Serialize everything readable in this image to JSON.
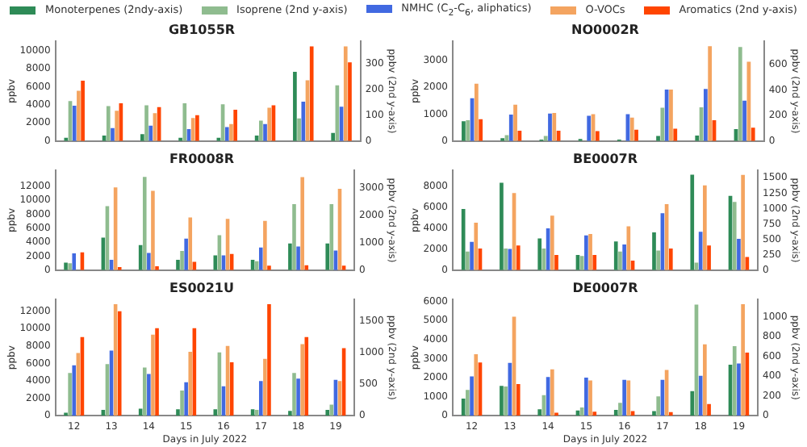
{
  "chart_data": [
    {
      "type": "bar",
      "title": "GB1055R",
      "ylabel": "ppbv",
      "y2label": "ppbv (2nd y-axis)",
      "legend": "top",
      "tick_labels": "y",
      "categories": [
        "12",
        "13",
        "14",
        "15",
        "16",
        "17",
        "18",
        "19"
      ],
      "ylim": [
        0,
        11000
      ],
      "yticks": [
        0,
        2000,
        4000,
        6000,
        8000,
        10000
      ],
      "y2lim": [
        0,
        385
      ],
      "y2ticks": [
        0,
        100,
        200,
        300
      ],
      "series": [
        {
          "name": "Monoterpenes (2ndy-axis)",
          "color": "#2e8b57",
          "axis": "y2",
          "values": [
            13,
            21,
            27,
            13,
            13,
            21,
            267,
            31
          ]
        },
        {
          "name": "Isoprene (2nd y-axis)",
          "color": "#8fbc8f",
          "axis": "y2",
          "values": [
            154,
            135,
            138,
            146,
            142,
            79,
            87,
            215
          ]
        },
        {
          "name": "NMHC (C$_{2}$-C$_{6}$, aliphatics)",
          "color": "#4169e1",
          "values": [
            3900,
            1430,
            1700,
            1320,
            1540,
            1870,
            4340,
            3790
          ]
        },
        {
          "name": "O-VOCs",
          "color": "#f4a460",
          "values": [
            5550,
            3350,
            3080,
            2530,
            1870,
            3680,
            6700,
            10440
          ]
        },
        {
          "name": "Aromatics (2nd y-axis)",
          "color": "#ff4500",
          "axis": "y2",
          "values": [
            233,
            146,
            131,
            100,
            121,
            138,
            365,
            304
          ]
        }
      ]
    },
    {
      "type": "bar",
      "title": "NO0002R",
      "ylabel": "ppbv",
      "y2label": "ppbv (2nd y-axis)",
      "tick_labels": "y",
      "categories": [
        "12",
        "13",
        "14",
        "15",
        "16",
        "17",
        "18",
        "19"
      ],
      "ylim": [
        0,
        3700
      ],
      "yticks": [
        0,
        1000,
        2000,
        3000
      ],
      "y2lim": [
        0,
        780
      ],
      "y2ticks": [
        0,
        200,
        400,
        600
      ],
      "series": [
        {
          "color": "#2e8b57",
          "axis": "y2",
          "values": [
            155,
            23,
            12,
            16,
            12,
            39,
            43,
            93
          ]
        },
        {
          "color": "#8fbc8f",
          "axis": "y2",
          "values": [
            163,
            46,
            39,
            null,
            null,
            260,
            264,
            736
          ]
        },
        {
          "color": "#4169e1",
          "values": [
            1590,
            980,
            1020,
            940,
            1000,
            1910,
            1930,
            1500
          ]
        },
        {
          "color": "#f4a460",
          "values": [
            2130,
            1350,
            1040,
            1000,
            870,
            1910,
            3520,
            2940
          ]
        },
        {
          "color": "#ff4500",
          "axis": "y2",
          "values": [
            171,
            81,
            81,
            78,
            89,
            97,
            163,
            105
          ]
        }
      ]
    },
    {
      "type": "bar",
      "title": "FR0008R",
      "ylabel": "ppbv",
      "y2label": "ppbv (2nd y-axis)",
      "tick_labels": "y",
      "categories": [
        "12",
        "13",
        "14",
        "15",
        "16",
        "17",
        "18",
        "19"
      ],
      "ylim": [
        0,
        14300
      ],
      "yticks": [
        0,
        2000,
        4000,
        6000,
        8000,
        10000,
        12000
      ],
      "y2lim": [
        0,
        3630
      ],
      "y2ticks": [
        0,
        1000,
        2000,
        3000
      ],
      "series": [
        {
          "color": "#2e8b57",
          "axis": "y2",
          "values": [
            270,
            1185,
            915,
            377,
            540,
            377,
            970,
            970
          ]
        },
        {
          "color": "#8fbc8f",
          "axis": "y2",
          "values": [
            250,
            2330,
            3390,
            700,
            1275,
            323,
            2400,
            2400
          ]
        },
        {
          "color": "#4169e1",
          "values": [
            2400,
            1480,
            2470,
            4520,
            2120,
            3250,
            3390,
            2820
          ]
        },
        {
          "color": "#f4a460",
          "values": [
            null,
            11860,
            11360,
            7550,
            7340,
            7060,
            13340,
            11650
          ]
        },
        {
          "color": "#ff4500",
          "axis": "y2",
          "values": [
            646,
            108,
            144,
            305,
            592,
            162,
            180,
            162
          ]
        }
      ]
    },
    {
      "type": "bar",
      "title": "BE0007R",
      "ylabel": "ppbv",
      "y2label": "ppbv (2nd y-axis)",
      "tick_labels": "y",
      "categories": [
        "12",
        "13",
        "14",
        "15",
        "16",
        "17",
        "18",
        "19"
      ],
      "ylim": [
        0,
        9470
      ],
      "yticks": [
        0,
        2000,
        4000,
        6000,
        8000
      ],
      "y2lim": [
        0,
        1620
      ],
      "y2ticks": [
        0,
        250,
        500,
        750,
        1000,
        1250,
        1500
      ],
      "series": [
        {
          "color": "#2e8b57",
          "axis": "y2",
          "values": [
            992,
            1418,
            516,
            246,
            467,
            615,
            1549,
            1205
          ]
        },
        {
          "color": "#8fbc8f",
          "axis": "y2",
          "values": [
            303,
            352,
            352,
            230,
            303,
            320,
            123,
            1107
          ]
        },
        {
          "color": "#4169e1",
          "values": [
            2680,
            2010,
            3970,
            3300,
            2440,
            5410,
            3640,
            2970
          ]
        },
        {
          "color": "#f4a460",
          "values": [
            4500,
            7320,
            5170,
            3440,
            4160,
            6270,
            8040,
            9040
          ]
        },
        {
          "color": "#ff4500",
          "axis": "y2",
          "values": [
            352,
            402,
            246,
            246,
            156,
            352,
            402,
            213
          ]
        }
      ]
    },
    {
      "type": "bar",
      "title": "ES0021U",
      "xlabel": "Days in July 2022",
      "ylabel": "ppbv",
      "y2label": "ppbv (2nd y-axis)",
      "categories": [
        "12",
        "13",
        "14",
        "15",
        "16",
        "17",
        "18",
        "19"
      ],
      "ylim": [
        0,
        13350
      ],
      "yticks": [
        0,
        2000,
        4000,
        6000,
        8000,
        10000,
        12000
      ],
      "y2lim": [
        0,
        1845
      ],
      "y2ticks": [
        0,
        500,
        1000,
        1500
      ],
      "series": [
        {
          "color": "#2e8b57",
          "axis": "y2",
          "values": [
            47,
            93,
            112,
            103,
            103,
            103,
            75,
            93
          ]
        },
        {
          "color": "#8fbc8f",
          "axis": "y2",
          "values": [
            680,
            820,
            764,
            400,
            1006,
            93,
            680,
            177
          ]
        },
        {
          "color": "#4169e1",
          "values": [
            5800,
            7480,
            4790,
            3840,
            3370,
            3980,
            4250,
            4110
          ]
        },
        {
          "color": "#f4a460",
          "values": [
            7210,
            12810,
            9310,
            7350,
            8020,
            6540,
            8230,
            3980
          ]
        },
        {
          "color": "#ff4500",
          "axis": "y2",
          "values": [
            1249,
            1659,
            1389,
            1389,
            848,
            1771,
            1249,
            1072
          ]
        }
      ]
    },
    {
      "type": "bar",
      "title": "DE0007R",
      "xlabel": "Days in July 2022",
      "ylabel": "ppbv",
      "y2label": "ppbv (2nd y-axis)",
      "categories": [
        "12",
        "13",
        "14",
        "15",
        "16",
        "17",
        "18",
        "19"
      ],
      "ylim": [
        0,
        6100
      ],
      "yticks": [
        0,
        1000,
        2000,
        3000,
        4000,
        5000,
        6000
      ],
      "y2lim": [
        0,
        1175
      ],
      "y2ticks": [
        0,
        200,
        400,
        600,
        800,
        1000
      ],
      "series": [
        {
          "color": "#2e8b57",
          "axis": "y2",
          "values": [
            172,
            302,
            65,
            53,
            59,
            47,
            249,
            515
          ]
        },
        {
          "color": "#8fbc8f",
          "axis": "y2",
          "values": [
            260,
            296,
            207,
            83,
            130,
            195,
            1124,
            704
          ]
        },
        {
          "color": "#4169e1",
          "values": [
            2060,
            2770,
            2030,
            2000,
            1880,
            1880,
            2090,
            2740
          ]
        },
        {
          "color": "#f4a460",
          "values": [
            3230,
            5200,
            2430,
            1850,
            1850,
            2400,
            3750,
            5850
          ]
        },
        {
          "color": "#ff4500",
          "axis": "y2",
          "values": [
            538,
            320,
            30,
            41,
            47,
            36,
            118,
            639
          ]
        }
      ]
    }
  ]
}
